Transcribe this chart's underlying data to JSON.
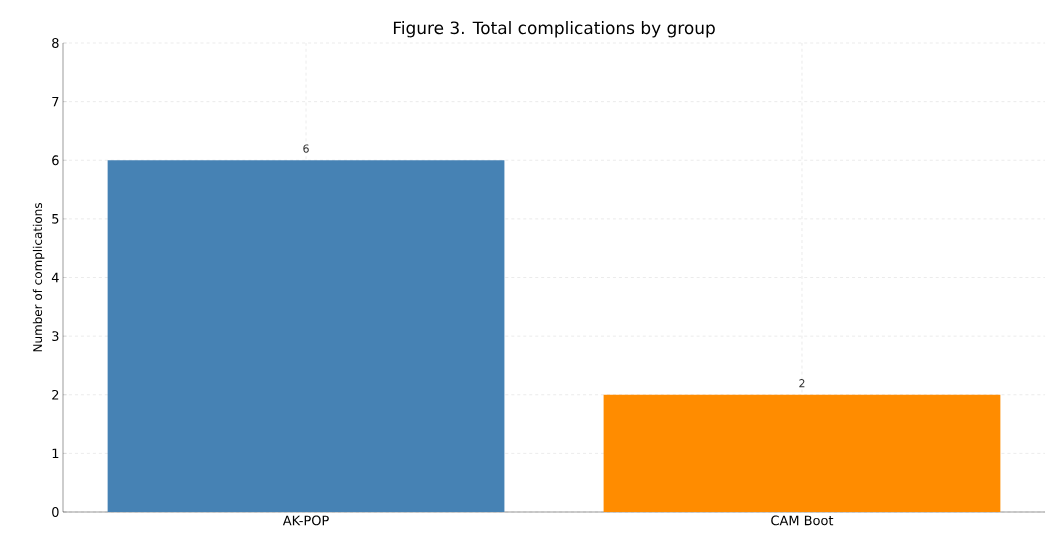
{
  "chart_data": {
    "type": "bar",
    "title": "Figure 3. Total complications by group",
    "ylabel": "Number of complications",
    "categories": [
      "AK-POP",
      "CAM Boot"
    ],
    "values": [
      6,
      2
    ],
    "colors": [
      "#4682b4",
      "#ff8c00"
    ],
    "ylim": [
      0,
      8
    ],
    "yticks": [
      0,
      1,
      2,
      3,
      4,
      5,
      6,
      7,
      8
    ],
    "grid": true,
    "data_labels": true
  }
}
